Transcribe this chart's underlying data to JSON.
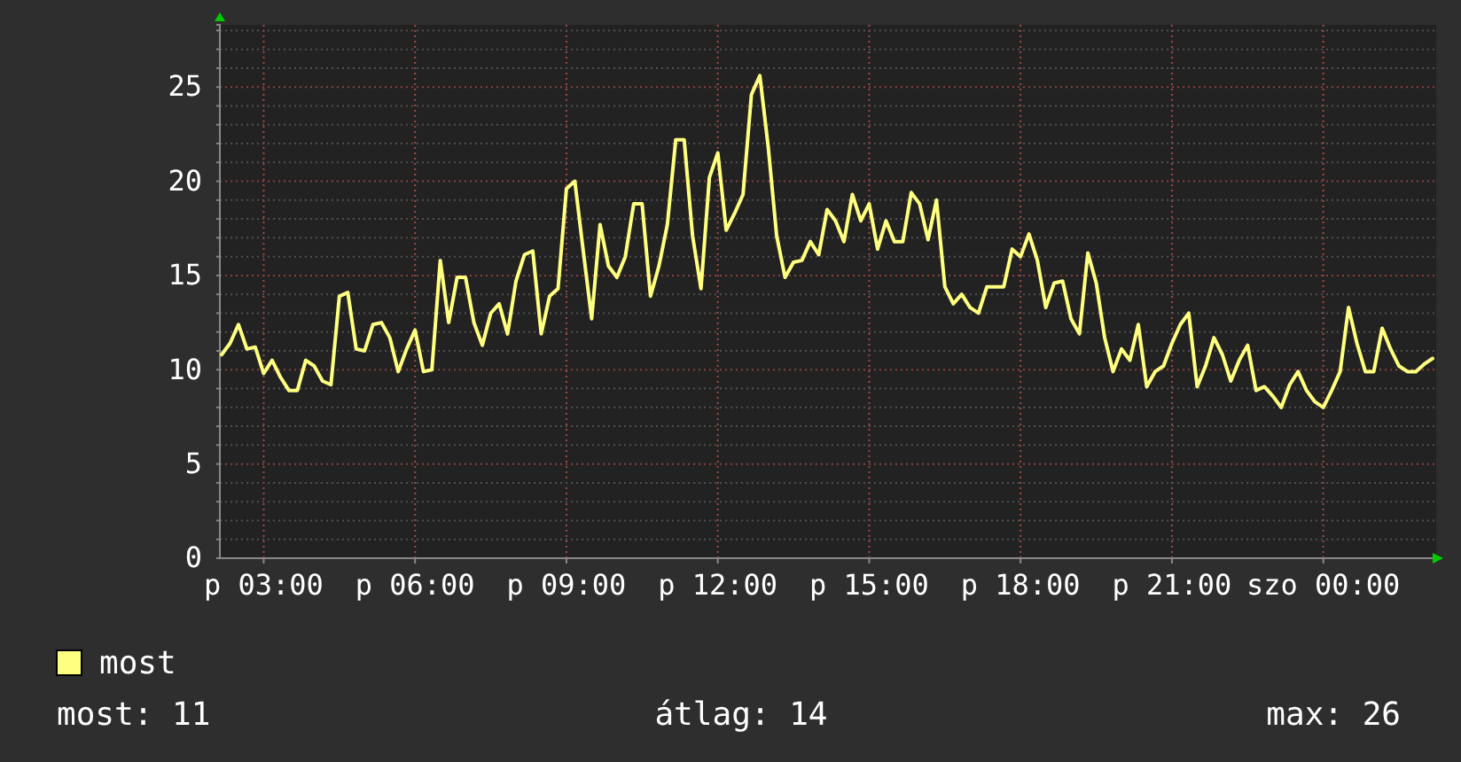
{
  "chart_data": {
    "type": "line",
    "categories": [
      null,
      null,
      null,
      null,
      null,
      "p 03:00",
      null,
      null,
      null,
      null,
      null,
      null,
      null,
      null,
      null,
      null,
      null,
      null,
      null,
      null,
      null,
      null,
      null,
      "p 06:00",
      null,
      null,
      null,
      null,
      null,
      null,
      null,
      null,
      null,
      null,
      null,
      null,
      null,
      null,
      null,
      null,
      null,
      "p 09:00",
      null,
      null,
      null,
      null,
      null,
      null,
      null,
      null,
      null,
      null,
      null,
      null,
      null,
      null,
      null,
      null,
      null,
      "p 12:00",
      null,
      null,
      null,
      null,
      null,
      null,
      null,
      null,
      null,
      null,
      null,
      null,
      null,
      null,
      null,
      null,
      null,
      "p 15:00",
      null,
      null,
      null,
      null,
      null,
      null,
      null,
      null,
      null,
      null,
      null,
      null,
      null,
      null,
      null,
      null,
      null,
      "p 18:00",
      null,
      null,
      null,
      null,
      null,
      null,
      null,
      null,
      null,
      null,
      null,
      null,
      null,
      null,
      null,
      null,
      null,
      "p 21:00",
      null,
      null,
      null,
      null,
      null,
      null,
      null,
      null,
      null,
      null,
      null,
      null,
      null,
      null,
      null,
      null,
      null,
      "szo 00:00",
      null,
      null,
      null,
      null,
      null,
      null,
      null,
      null,
      null,
      null,
      null,
      null,
      null
    ],
    "series": [
      {
        "name": "most",
        "color": "#ffff80",
        "values": [
          10.8,
          11.4,
          12.4,
          11.1,
          11.2,
          9.8,
          10.5,
          9.6,
          8.9,
          8.9,
          10.5,
          10.2,
          9.4,
          9.2,
          13.9,
          14.1,
          11.1,
          11.0,
          12.4,
          12.5,
          11.7,
          9.9,
          11.1,
          12.1,
          9.9,
          10.0,
          15.8,
          12.5,
          14.9,
          14.9,
          12.5,
          11.3,
          13.0,
          13.5,
          11.9,
          14.7,
          16.1,
          16.3,
          11.9,
          13.9,
          14.3,
          19.6,
          20.0,
          16.3,
          12.7,
          17.7,
          15.5,
          14.9,
          16.0,
          18.8,
          18.8,
          13.9,
          15.5,
          17.7,
          22.2,
          22.2,
          17.1,
          14.3,
          20.2,
          21.5,
          17.4,
          18.3,
          19.3,
          24.6,
          25.6,
          21.8,
          17.1,
          14.9,
          15.7,
          15.8,
          16.8,
          16.1,
          18.5,
          17.9,
          16.8,
          19.3,
          17.9,
          18.8,
          16.4,
          17.9,
          16.8,
          16.8,
          19.4,
          18.8,
          16.9,
          19.0,
          14.4,
          13.5,
          14.0,
          13.3,
          13.0,
          14.4,
          14.4,
          14.4,
          16.4,
          16.0,
          17.2,
          15.8,
          13.3,
          14.6,
          14.7,
          12.7,
          11.9,
          16.2,
          14.6,
          11.7,
          9.9,
          11.1,
          10.5,
          12.4,
          9.1,
          9.9,
          10.2,
          11.4,
          12.4,
          13.0,
          9.1,
          10.2,
          11.7,
          10.8,
          9.4,
          10.5,
          11.3,
          8.9,
          9.1,
          8.6,
          8.0,
          9.2,
          9.9,
          8.9,
          8.3,
          8.0,
          8.9,
          9.9,
          13.3,
          11.4,
          9.9,
          9.9,
          12.2,
          11.1,
          10.2,
          9.9,
          9.9,
          10.3,
          10.6
        ]
      }
    ],
    "ylim": [
      0,
      28.3
    ],
    "yticks": [
      0,
      {
        "value": 1,
        "label": null
      },
      {
        "value": 2,
        "label": null
      },
      {
        "value": 3,
        "label": null
      },
      {
        "value": 4,
        "label": null
      },
      5,
      {
        "value": 6,
        "label": null
      },
      {
        "value": 7,
        "label": null
      },
      {
        "value": 8,
        "label": null
      },
      {
        "value": 9,
        "label": null
      },
      10,
      {
        "value": 11,
        "label": null
      },
      {
        "value": 12,
        "label": null
      },
      {
        "value": 13,
        "label": null
      },
      {
        "value": 14,
        "label": null
      },
      15,
      {
        "value": 16,
        "label": null
      },
      {
        "value": 17,
        "label": null
      },
      {
        "value": 18,
        "label": null
      },
      {
        "value": 19,
        "label": null
      },
      20,
      {
        "value": 21,
        "label": null
      },
      {
        "value": 22,
        "label": null
      },
      {
        "value": 23,
        "label": null
      },
      {
        "value": 24,
        "label": null
      },
      25,
      {
        "value": 26,
        "label": null
      },
      {
        "value": 27,
        "label": null
      },
      {
        "value": 28,
        "label": null
      }
    ],
    "grid": true,
    "legend": "bottom left",
    "annotations": [
      "most: 11",
      "átlag: 14",
      "max: 26"
    ]
  }
}
